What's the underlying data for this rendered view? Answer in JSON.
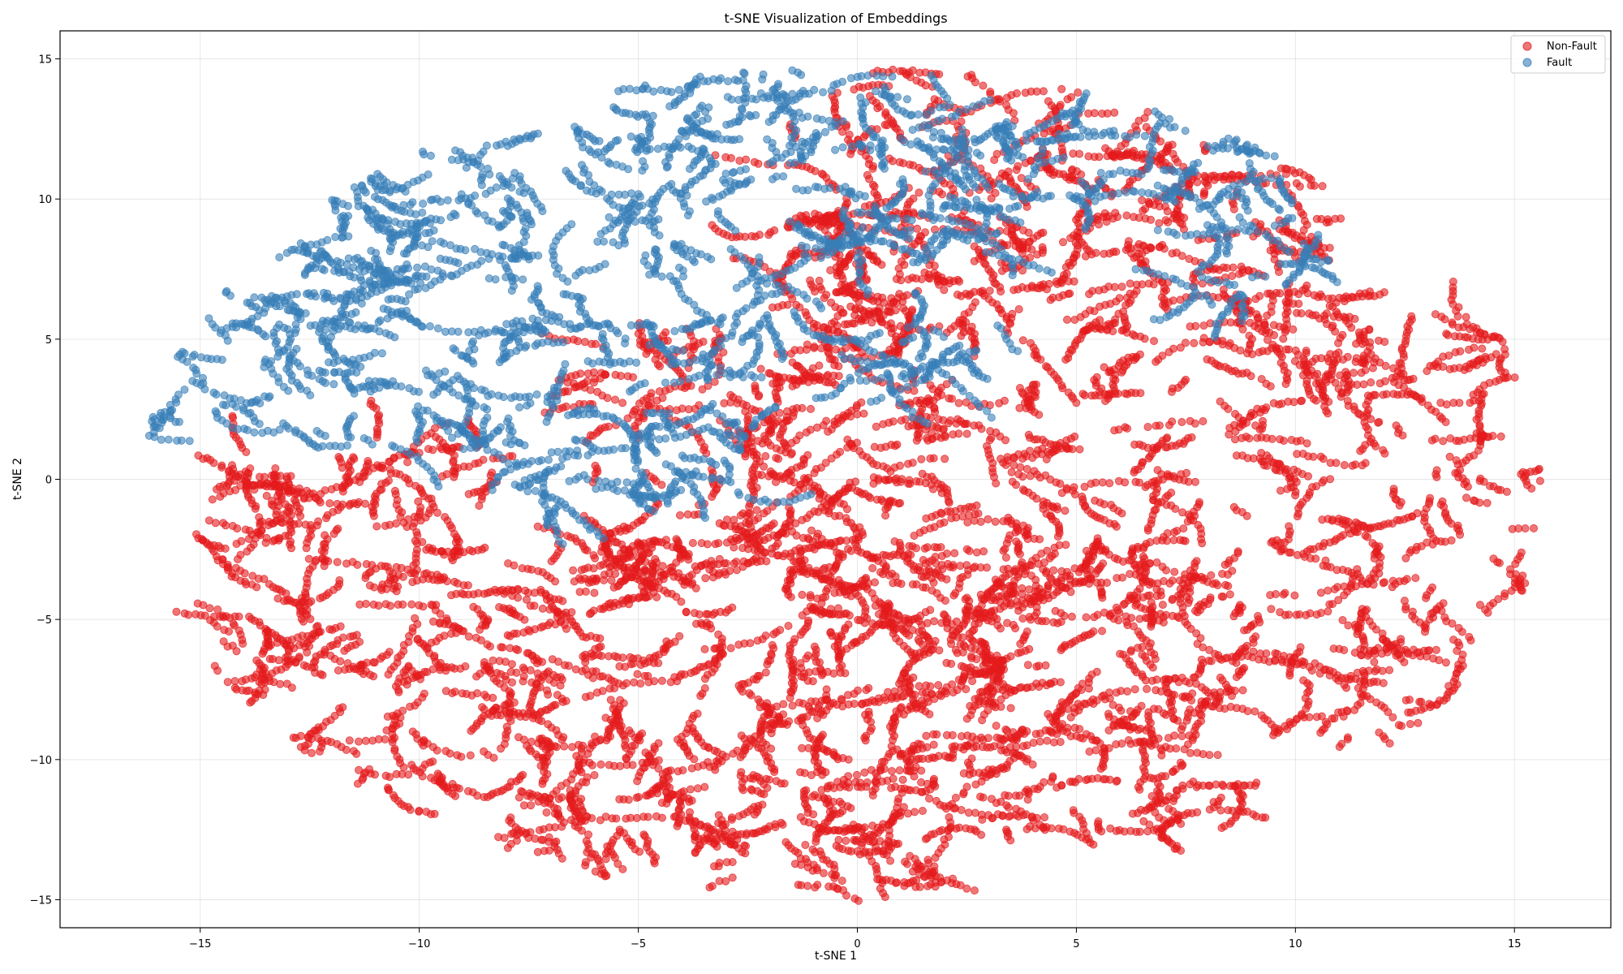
{
  "chart_data": {
    "type": "scatter",
    "title": "t-SNE Visualization of Embeddings",
    "xlabel": "t-SNE 1",
    "ylabel": "t-SNE 2",
    "xlim": [
      -18.2,
      17.2
    ],
    "ylim": [
      -16.0,
      16.0
    ],
    "xticks": [
      -15,
      -10,
      -5,
      0,
      5,
      10,
      15
    ],
    "yticks": [
      -15,
      -10,
      -5,
      0,
      5,
      10,
      15
    ],
    "grid": true,
    "legend_position": "top-right",
    "series": [
      {
        "name": "Non-Fault",
        "color": "#e41a1c",
        "alpha": 0.6,
        "point_count_estimate": 9000,
        "approx_regions": [
          {
            "x": [
              -15.2,
              -8.0
            ],
            "y": [
              -12.5,
              1.5
            ]
          },
          {
            "x": [
              -8.0,
              -2.0
            ],
            "y": [
              -14.5,
              -2.0
            ]
          },
          {
            "x": [
              -2.0,
              3.5
            ],
            "y": [
              -14.8,
              -3.0
            ]
          },
          {
            "x": [
              0.0,
              7.8
            ],
            "y": [
              -6.0,
              5.8
            ]
          },
          {
            "x": [
              2.8,
              8.8
            ],
            "y": [
              -12.8,
              -3.0
            ]
          },
          {
            "x": [
              8.5,
              15.8
            ],
            "y": [
              -9.5,
              5.5
            ]
          },
          {
            "x": [
              -6.0,
              0.0
            ],
            "y": [
              -4.0,
              6.0
            ]
          },
          {
            "x": [
              -2.0,
              6.0
            ],
            "y": [
              6.0,
              14.5
            ]
          },
          {
            "x": [
              6.0,
              11.0
            ],
            "y": [
              5.0,
              12.0
            ]
          }
        ]
      },
      {
        "name": "Fault",
        "color": "#377eb8",
        "alpha": 0.6,
        "point_count_estimate": 3500,
        "approx_regions": [
          {
            "x": [
              -16.5,
              -7.5
            ],
            "y": [
              1.0,
              12.0
            ]
          },
          {
            "x": [
              -8.0,
              -2.0
            ],
            "y": [
              -1.0,
              8.0
            ]
          },
          {
            "x": [
              -6.0,
              3.0
            ],
            "y": [
              8.0,
              14.5
            ]
          },
          {
            "x": [
              3.0,
              7.5
            ],
            "y": [
              9.5,
              14.2
            ]
          },
          {
            "x": [
              7.0,
              10.5
            ],
            "y": [
              6.0,
              12.5
            ]
          },
          {
            "x": [
              -1.0,
              3.5
            ],
            "y": [
              3.5,
              5.5
            ]
          }
        ]
      }
    ]
  }
}
